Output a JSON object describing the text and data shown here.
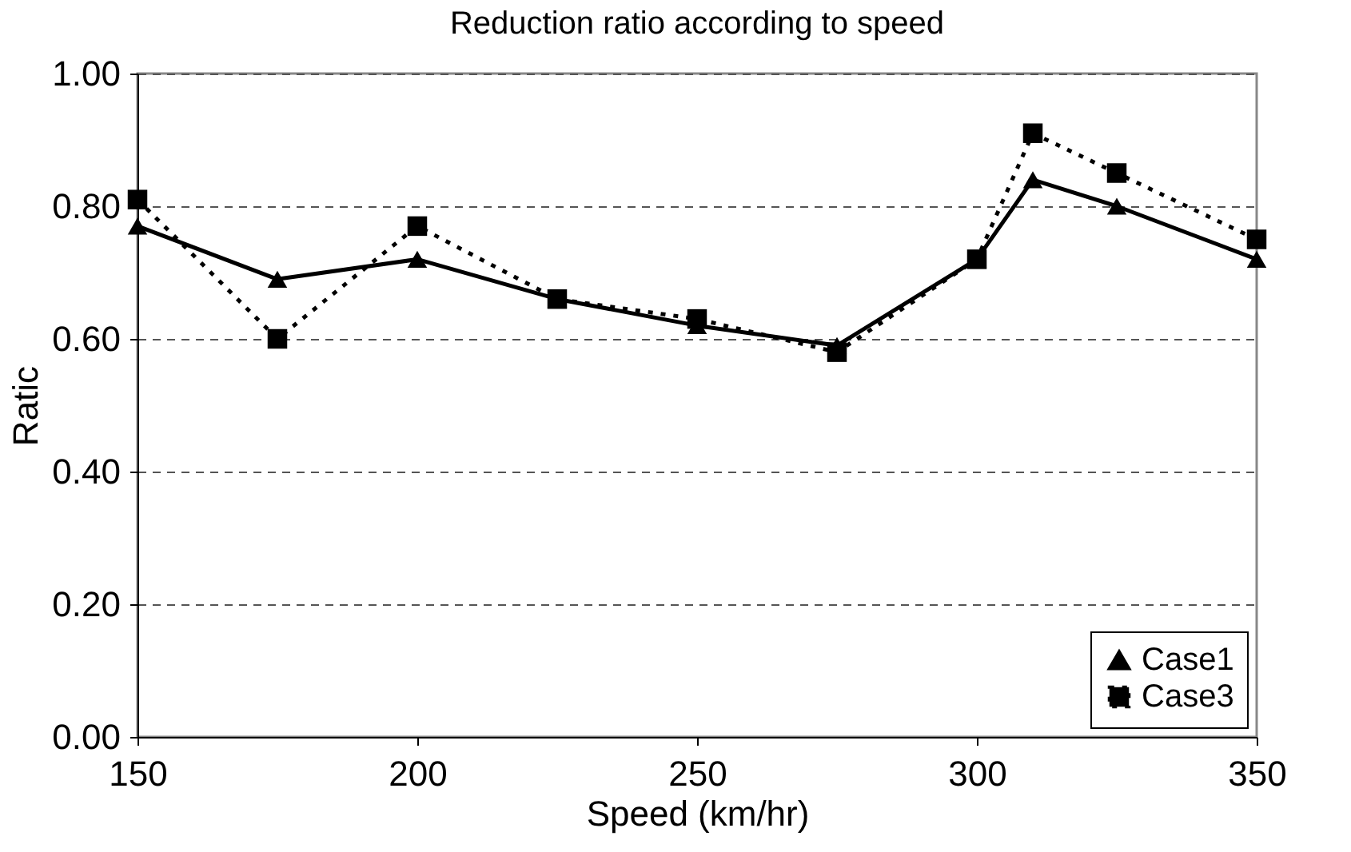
{
  "chart_data": {
    "type": "line",
    "title": "Reduction ratio according to speed",
    "xlabel": "Speed (km/hr)",
    "ylabel": "Ratic",
    "x": [
      150,
      175,
      200,
      225,
      250,
      275,
      300,
      310,
      325,
      350
    ],
    "series": [
      {
        "name": "Case1",
        "color": "#000000",
        "marker": "triangle",
        "line_style": "solid",
        "values": [
          0.77,
          0.69,
          0.72,
          0.66,
          0.62,
          0.59,
          0.72,
          0.84,
          0.8,
          0.72
        ]
      },
      {
        "name": "Case3",
        "color": "#000000",
        "marker": "square",
        "line_style": "dotted",
        "values": [
          0.81,
          0.6,
          0.77,
          0.66,
          0.63,
          0.58,
          0.72,
          0.91,
          0.85,
          0.75
        ]
      }
    ],
    "xlim": [
      150,
      350
    ],
    "xticks": [
      150,
      200,
      250,
      300,
      350
    ],
    "ylim": [
      0,
      1
    ],
    "yticks": [
      {
        "value": 0,
        "label": "0.00"
      },
      {
        "value": 0.2,
        "label": "0.20"
      },
      {
        "value": 0.4,
        "label": "0.40"
      },
      {
        "value": 0.6,
        "label": "0.60"
      },
      {
        "value": 0.8,
        "label": "0.80"
      },
      {
        "value": 1,
        "label": "1.00"
      }
    ],
    "grid": "y",
    "legend": "bottom right"
  }
}
